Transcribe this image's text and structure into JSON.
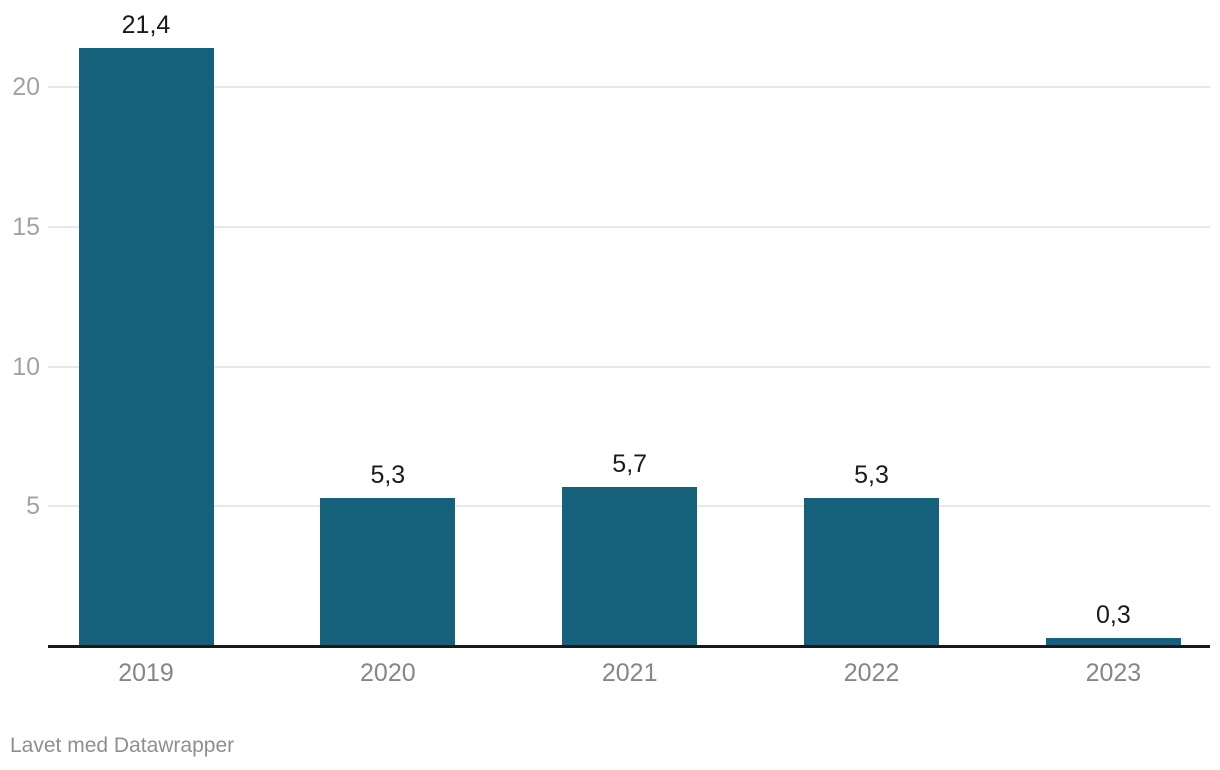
{
  "chart_data": {
    "type": "bar",
    "title": "",
    "xlabel": "",
    "ylabel": "",
    "categories": [
      "2019",
      "2020",
      "2021",
      "2022",
      "2023"
    ],
    "values": [
      21.4,
      5.3,
      5.7,
      5.3,
      0.3
    ],
    "value_labels": [
      "21,4",
      "5,3",
      "5,7",
      "5,3",
      "0,3"
    ],
    "y_ticks": [
      5,
      10,
      15,
      20
    ],
    "y_tick_labels": [
      "5",
      "10",
      "15",
      "20"
    ],
    "ylim": [
      0,
      21.4
    ],
    "grid": true,
    "legend": false,
    "decimal_separator": ",",
    "colors": {
      "bar": "#15607a",
      "gridline": "#e8e8e8",
      "axis_line": "#19191b",
      "value_label": "#1a1a1a",
      "y_tick_label": "#a2a2a2",
      "category_label": "#868686",
      "credit_text": "#8f8f8f"
    }
  },
  "footer": {
    "credit": "Lavet med Datawrapper"
  }
}
